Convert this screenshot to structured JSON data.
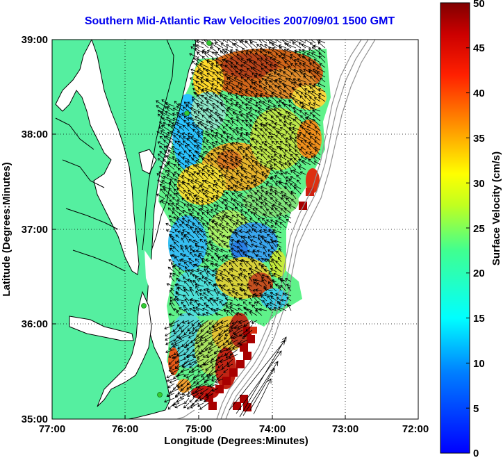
{
  "title": "Southern Mid-Atlantic Raw Velocities 2007/09/01 1500 GMT",
  "map": {
    "xaxis": {
      "label": "Longitude (Degrees:Minutes)",
      "ticks": [
        "77:00",
        "76:00",
        "75:00",
        "74:00",
        "73:00",
        "72:00"
      ],
      "range": [
        -77,
        -72
      ]
    },
    "yaxis": {
      "label": "Latitude (Degrees:Minutes)",
      "ticks": [
        "35:00",
        "36:00",
        "37:00",
        "38:00",
        "39:00"
      ],
      "range": [
        35,
        39
      ]
    },
    "grid": "dotted",
    "colors": {
      "land": "#55efa0",
      "coast": "#000000",
      "vector": "#000000",
      "bathymetry": "#909090",
      "station": "#33cc33"
    }
  },
  "colorbar": {
    "label": "Surface Velocity (cm/s)",
    "ticks": [
      "0",
      "5",
      "10",
      "15",
      "20",
      "25",
      "30",
      "35",
      "40",
      "45",
      "50"
    ],
    "range": [
      0,
      50
    ],
    "colormap": "jet"
  }
}
